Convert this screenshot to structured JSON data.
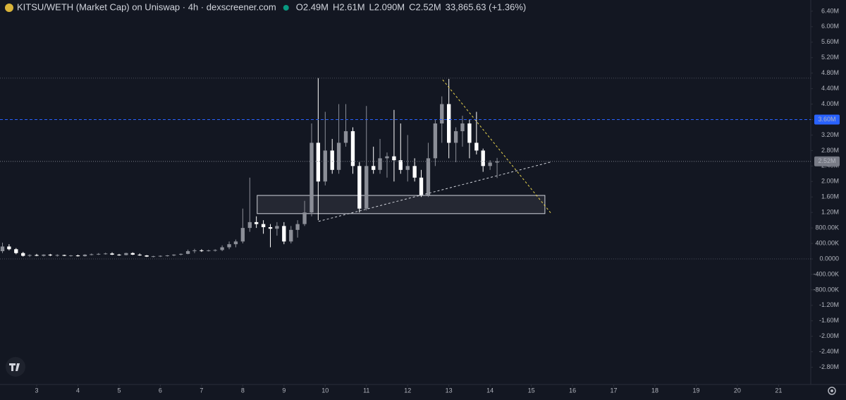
{
  "chart_data": {
    "type": "candlestick",
    "title": "KITSU/WETH (Market Cap) on Uniswap · 4h · dexscreener.com",
    "ohlc_labels": [
      {
        "key": "O",
        "value": "2.49M"
      },
      {
        "key": "H",
        "value": "2.61M"
      },
      {
        "key": "L",
        "value": "2.090M"
      },
      {
        "key": "C",
        "value": "2.52M"
      }
    ],
    "change": "33,865.63 (+1.36%)",
    "up_color": "#8b8e97",
    "down_color": "#ffffff",
    "xlim": [
      2.11,
      21.78
    ],
    "xticks": [
      3,
      4,
      5,
      6,
      7,
      8,
      9,
      10,
      11,
      12,
      13,
      14,
      15,
      16,
      17,
      18,
      19,
      20,
      21
    ],
    "ylim": [
      -3245000,
      6690000
    ],
    "yticks": [
      {
        "value": 6400000,
        "label": "6.40M"
      },
      {
        "value": 6000000,
        "label": "6.00M"
      },
      {
        "value": 5600000,
        "label": "5.60M"
      },
      {
        "value": 5200000,
        "label": "5.20M"
      },
      {
        "value": 4800000,
        "label": "4.80M"
      },
      {
        "value": 4400000,
        "label": "4.40M"
      },
      {
        "value": 4000000,
        "label": "4.00M"
      },
      {
        "value": 3600000,
        "label": "3.60M"
      },
      {
        "value": 3200000,
        "label": "3.20M"
      },
      {
        "value": 2800000,
        "label": "2.80M"
      },
      {
        "value": 2400000,
        "label": "2.40M"
      },
      {
        "value": 2000000,
        "label": "2.00M"
      },
      {
        "value": 1600000,
        "label": "1.60M"
      },
      {
        "value": 1200000,
        "label": "1.20M"
      },
      {
        "value": 800000,
        "label": "800.00K"
      },
      {
        "value": 400000,
        "label": "400.00K"
      },
      {
        "value": 0,
        "label": "0.0000"
      },
      {
        "value": -400000,
        "label": "-400.00K"
      },
      {
        "value": -800000,
        "label": "-800.00K"
      },
      {
        "value": -1200000,
        "label": "-1.20M"
      },
      {
        "value": -1600000,
        "label": "-1.60M"
      },
      {
        "value": -2000000,
        "label": "-2.00M"
      },
      {
        "value": -2400000,
        "label": "-2.40M"
      },
      {
        "value": -2800000,
        "label": "-2.80M"
      }
    ],
    "levels": [
      4670000,
      0
    ],
    "price_lines": [
      {
        "value": 3600000,
        "label": "3.60M",
        "color": "#2962ff"
      },
      {
        "value": 2520000,
        "label": "2.52M",
        "color": "#787b86"
      }
    ],
    "rectangles": [
      {
        "x": [
          8.35,
          15.33
        ],
        "y": [
          1170000,
          1640000
        ]
      }
    ],
    "trend_lines": [
      {
        "x": [
          12.85,
          15.5
        ],
        "y": [
          4630000,
          1150000
        ],
        "color": "#e8d44d"
      },
      {
        "x": [
          9.84,
          15.46
        ],
        "y": [
          970000,
          2500000
        ],
        "color": "#d1d4dc"
      }
    ],
    "x": [
      2.17,
      2.33,
      2.5,
      2.67,
      2.83,
      3,
      3.17,
      3.33,
      3.5,
      3.67,
      3.83,
      4,
      4.17,
      4.33,
      4.5,
      4.67,
      4.83,
      5,
      5.17,
      5.33,
      5.5,
      5.67,
      5.83,
      6,
      6.17,
      6.33,
      6.5,
      6.67,
      6.83,
      7,
      7.17,
      7.33,
      7.5,
      7.67,
      7.83,
      8,
      8.17,
      8.33,
      8.5,
      8.67,
      8.83,
      9,
      9.17,
      9.33,
      9.5,
      9.67,
      9.83,
      10,
      10.17,
      10.33,
      10.5,
      10.67,
      10.83,
      11,
      11.17,
      11.33,
      11.5,
      11.67,
      11.83,
      12,
      12.17,
      12.33,
      12.5,
      12.67,
      12.83,
      13,
      13.17,
      13.33,
      13.5,
      13.67,
      13.83,
      14,
      14.17
    ],
    "open": [
      200000,
      320000,
      250000,
      150000,
      80000,
      100000,
      80000,
      110000,
      90000,
      100000,
      80000,
      90000,
      70000,
      110000,
      120000,
      130000,
      140000,
      110000,
      100000,
      150000,
      110000,
      90000,
      60000,
      70000,
      80000,
      90000,
      110000,
      130000,
      200000,
      220000,
      210000,
      220000,
      230000,
      300000,
      380000,
      450000,
      800000,
      950000,
      900000,
      820000,
      780000,
      850000,
      450000,
      750000,
      900000,
      1200000,
      3000000,
      2000000,
      2800000,
      2300000,
      3000000,
      3300000,
      2400000,
      1300000,
      2400000,
      2300000,
      2600000,
      2650000,
      2550000,
      2300000,
      2400000,
      2100000,
      1650000,
      2600000,
      3500000,
      4000000,
      3000000,
      3300000,
      3500000,
      3000000,
      2800000,
      2400000,
      2490000
    ],
    "high": [
      420000,
      380000,
      280000,
      180000,
      120000,
      130000,
      120000,
      130000,
      120000,
      110000,
      100000,
      110000,
      120000,
      140000,
      150000,
      160000,
      170000,
      130000,
      160000,
      170000,
      140000,
      100000,
      80000,
      90000,
      100000,
      120000,
      140000,
      240000,
      260000,
      250000,
      240000,
      250000,
      350000,
      450000,
      500000,
      1300000,
      2100000,
      1100000,
      1000000,
      900000,
      950000,
      950000,
      850000,
      1000000,
      1500000,
      3500000,
      4670000,
      3800000,
      3100000,
      4000000,
      4000000,
      3400000,
      2500000,
      3950000,
      2900000,
      3100000,
      2750000,
      3850000,
      3500000,
      3200000,
      2600000,
      2300000,
      3000000,
      3600000,
      4200000,
      4650000,
      3400000,
      3700000,
      3600000,
      3800000,
      2850000,
      2550000,
      2610000
    ],
    "low": [
      150000,
      220000,
      120000,
      60000,
      50000,
      70000,
      60000,
      70000,
      60000,
      70000,
      60000,
      60000,
      60000,
      90000,
      100000,
      110000,
      100000,
      80000,
      90000,
      100000,
      80000,
      50000,
      40000,
      50000,
      60000,
      70000,
      90000,
      120000,
      150000,
      180000,
      190000,
      190000,
      200000,
      250000,
      300000,
      400000,
      700000,
      800000,
      650000,
      300000,
      600000,
      380000,
      400000,
      550000,
      850000,
      1100000,
      1000000,
      1900000,
      2200000,
      2200000,
      2900000,
      2200000,
      1200000,
      1250000,
      2200000,
      2200000,
      2100000,
      2000000,
      2200000,
      2000000,
      2000000,
      1600000,
      1600000,
      2400000,
      3000000,
      2600000,
      2500000,
      2900000,
      2600000,
      2700000,
      2250000,
      2300000,
      2090000
    ],
    "close": [
      320000,
      250000,
      150000,
      80000,
      100000,
      80000,
      110000,
      90000,
      100000,
      80000,
      90000,
      70000,
      110000,
      120000,
      130000,
      140000,
      110000,
      100000,
      150000,
      110000,
      90000,
      60000,
      70000,
      80000,
      90000,
      110000,
      130000,
      200000,
      220000,
      210000,
      220000,
      230000,
      300000,
      380000,
      450000,
      800000,
      950000,
      900000,
      820000,
      780000,
      850000,
      450000,
      750000,
      900000,
      1200000,
      3000000,
      2000000,
      2800000,
      2300000,
      3000000,
      3300000,
      2400000,
      1300000,
      2400000,
      2300000,
      2600000,
      2650000,
      2550000,
      2300000,
      2400000,
      2100000,
      1650000,
      2600000,
      3500000,
      4000000,
      3000000,
      3300000,
      3500000,
      3000000,
      2800000,
      2400000,
      2490000,
      2520000
    ]
  }
}
